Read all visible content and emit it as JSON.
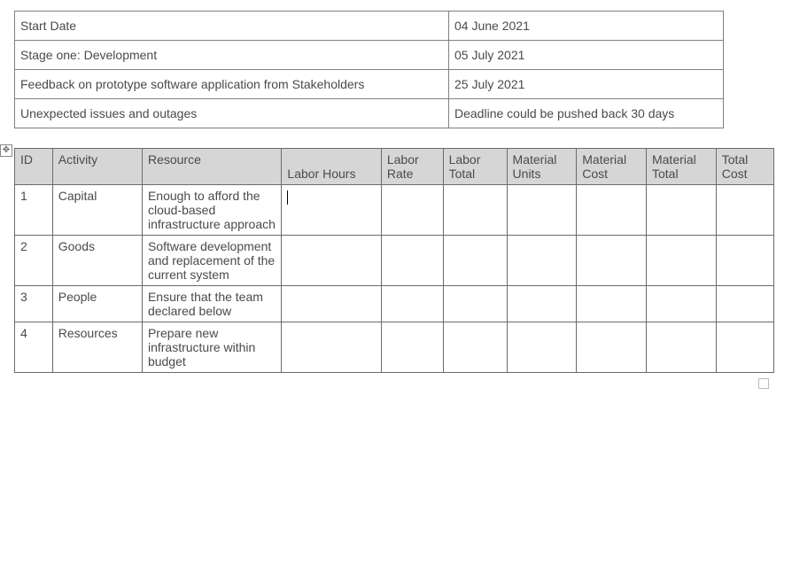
{
  "info": {
    "rows": [
      {
        "label": "Start Date",
        "value": "04 June 2021"
      },
      {
        "label": "Stage one: Development",
        "value": "05 July 2021"
      },
      {
        "label": "Feedback on prototype software application from Stakeholders",
        "value": "25 July 2021"
      },
      {
        "label": "Unexpected issues and outages",
        "value": "Deadline could be pushed back 30 days"
      }
    ]
  },
  "moveHandleGlyph": "✥",
  "mainTable": {
    "headers": {
      "id": "ID",
      "activity": "Activity",
      "resource": "Resource",
      "laborHours": "Labor Hours",
      "laborRate": "Labor Rate",
      "laborTotal": "Labor Total",
      "materialUnits": "Material Units",
      "materialCost": "Material Cost",
      "materialTotal": "Material Total",
      "totalCost": "Total Cost"
    },
    "rows": [
      {
        "id": "1",
        "activity": "Capital",
        "resource": "Enough to afford the cloud-based infrastructure approach",
        "laborHours": "",
        "laborRate": "",
        "laborTotal": "",
        "materialUnits": "",
        "materialCost": "",
        "materialTotal": "",
        "totalCost": ""
      },
      {
        "id": "2",
        "activity": "Goods",
        "resource": "Software development and replacement of the current system",
        "laborHours": "",
        "laborRate": "",
        "laborTotal": "",
        "materialUnits": "",
        "materialCost": "",
        "materialTotal": "",
        "totalCost": ""
      },
      {
        "id": "3",
        "activity": "People",
        "resource": "Ensure that the team declared below",
        "laborHours": "",
        "laborRate": "",
        "laborTotal": "",
        "materialUnits": "",
        "materialCost": "",
        "materialTotal": "",
        "totalCost": ""
      },
      {
        "id": "4",
        "activity": "Resources",
        "resource": "Prepare new infrastructure within budget",
        "laborHours": "",
        "laborRate": "",
        "laborTotal": "",
        "materialUnits": "",
        "materialCost": "",
        "materialTotal": "",
        "totalCost": ""
      }
    ]
  },
  "colors": {
    "text": "#4a4a4a",
    "border": "#6b6b6b",
    "headerBg": "#d6d6d6",
    "pageBg": "#ffffff"
  },
  "typography": {
    "fontFamily": "Arial",
    "fontSizePx": 14
  },
  "layout": {
    "canvasWidth": 894,
    "canvasHeight": 648
  }
}
